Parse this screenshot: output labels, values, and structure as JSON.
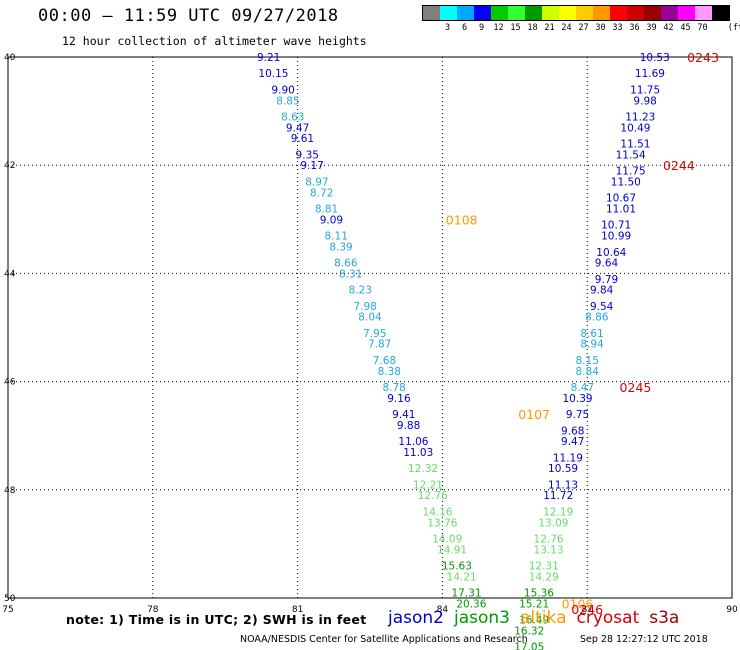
{
  "header": {
    "time_range": "00:00 – 11:59 UTC 09/27/2018",
    "subtitle": "12 hour collection of altimeter wave heights"
  },
  "legend": {
    "unit": "(ft)",
    "colors": [
      "#808080",
      "#00ffff",
      "#00aaff",
      "#0000ff",
      "#00cc00",
      "#33ff33",
      "#009900",
      "#ccff00",
      "#ffff00",
      "#ffcc00",
      "#ff9900",
      "#ff0000",
      "#cc0000",
      "#990000",
      "#990099",
      "#ff00ff",
      "#ff99ff",
      "#000000"
    ],
    "ticks": [
      "3",
      "6",
      "9",
      "12",
      "15",
      "18",
      "21",
      "24",
      "27",
      "30",
      "33",
      "36",
      "39",
      "42",
      "45",
      "70"
    ]
  },
  "axes": {
    "lon_labels": [
      "75",
      "78",
      "81",
      "84",
      "87",
      "90"
    ],
    "lat_labels": [
      "40",
      "42",
      "44",
      "46",
      "48",
      "50"
    ]
  },
  "tracks": [
    {
      "satellite": "jason3",
      "observations": [
        {
          "lon": 80.4,
          "lat": -40.0,
          "swh": "9.21",
          "color": "#0000cc"
        },
        {
          "lon": 80.5,
          "lat": -40.3,
          "swh": "10.15",
          "color": "#0000cc"
        },
        {
          "lon": 80.7,
          "lat": -40.6,
          "swh": "9.90",
          "color": "#0000cc"
        },
        {
          "lon": 80.8,
          "lat": -40.8,
          "swh": "8.85",
          "color": "#22aadd"
        },
        {
          "lon": 80.9,
          "lat": -41.1,
          "swh": "8.63",
          "color": "#22aadd"
        },
        {
          "lon": 81.0,
          "lat": -41.3,
          "swh": "9.47",
          "color": "#0000cc"
        },
        {
          "lon": 81.1,
          "lat": -41.5,
          "swh": "9.61",
          "color": "#0000cc"
        },
        {
          "lon": 81.2,
          "lat": -41.8,
          "swh": "9.35",
          "color": "#0000cc"
        },
        {
          "lon": 81.3,
          "lat": -42.0,
          "swh": "9.17",
          "color": "#0000cc"
        },
        {
          "lon": 81.4,
          "lat": -42.3,
          "swh": "8.97",
          "color": "#22aadd"
        },
        {
          "lon": 81.5,
          "lat": -42.5,
          "swh": "8.72",
          "color": "#22aadd"
        },
        {
          "lon": 81.6,
          "lat": -42.8,
          "swh": "8.81",
          "color": "#22aadd"
        },
        {
          "lon": 81.7,
          "lat": -43.0,
          "swh": "9.09",
          "color": "#0000cc"
        },
        {
          "lon": 81.8,
          "lat": -43.3,
          "swh": "8.11",
          "color": "#22aadd"
        },
        {
          "lon": 81.9,
          "lat": -43.5,
          "swh": "8.39",
          "color": "#22aadd"
        },
        {
          "lon": 82.0,
          "lat": -43.8,
          "swh": "8.66",
          "color": "#22aadd"
        },
        {
          "lon": 82.1,
          "lat": -44.0,
          "swh": "8.31",
          "color": "#22aadd"
        },
        {
          "lon": 82.3,
          "lat": -44.3,
          "swh": "8.23",
          "color": "#22aadd"
        },
        {
          "lon": 82.4,
          "lat": -44.6,
          "swh": "7.98",
          "color": "#22aadd"
        },
        {
          "lon": 82.5,
          "lat": -44.8,
          "swh": "8.04",
          "color": "#22aadd"
        },
        {
          "lon": 82.6,
          "lat": -45.1,
          "swh": "7.95",
          "color": "#22aadd"
        },
        {
          "lon": 82.7,
          "lat": -45.3,
          "swh": "7.87",
          "color": "#22aadd"
        },
        {
          "lon": 82.8,
          "lat": -45.6,
          "swh": "7.68",
          "color": "#22aadd"
        },
        {
          "lon": 82.9,
          "lat": -45.8,
          "swh": "8.38",
          "color": "#22aadd"
        },
        {
          "lon": 83.0,
          "lat": -46.1,
          "swh": "8.78",
          "color": "#22aadd"
        },
        {
          "lon": 83.1,
          "lat": -46.3,
          "swh": "9.16",
          "color": "#0000cc"
        },
        {
          "lon": 83.2,
          "lat": -46.6,
          "swh": "9.41",
          "color": "#0000cc"
        },
        {
          "lon": 83.3,
          "lat": -46.8,
          "swh": "9.88",
          "color": "#0000cc"
        },
        {
          "lon": 83.4,
          "lat": -47.1,
          "swh": "11.06",
          "color": "#0000cc"
        },
        {
          "lon": 83.5,
          "lat": -47.3,
          "swh": "11.03",
          "color": "#0000cc"
        },
        {
          "lon": 83.6,
          "lat": -47.6,
          "swh": "12.32",
          "color": "#66dd66"
        },
        {
          "lon": 83.7,
          "lat": -47.9,
          "swh": "12.21",
          "color": "#66dd66"
        },
        {
          "lon": 83.8,
          "lat": -48.1,
          "swh": "12.76",
          "color": "#66dd66"
        },
        {
          "lon": 83.9,
          "lat": -48.4,
          "swh": "14.16",
          "color": "#66dd66"
        },
        {
          "lon": 84.0,
          "lat": -48.6,
          "swh": "13.76",
          "color": "#66dd66"
        },
        {
          "lon": 84.1,
          "lat": -48.9,
          "swh": "14.09",
          "color": "#66dd66"
        },
        {
          "lon": 84.2,
          "lat": -49.1,
          "swh": "14.91",
          "color": "#66dd66"
        },
        {
          "lon": 84.3,
          "lat": -49.4,
          "swh": "15.63",
          "color": "#009900"
        },
        {
          "lon": 84.4,
          "lat": -49.6,
          "swh": "14.21",
          "color": "#66dd66"
        },
        {
          "lon": 84.5,
          "lat": -49.9,
          "swh": "17.31",
          "color": "#009900"
        },
        {
          "lon": 84.6,
          "lat": -50.1,
          "swh": "20.36",
          "color": "#009900"
        }
      ],
      "passes": [
        {
          "id": "0108",
          "lon": 84.4,
          "lat": -43.0,
          "color": "#ff9900"
        },
        {
          "id": "0107",
          "lon": 85.9,
          "lat": -46.6,
          "color": "#ff9900"
        },
        {
          "id": "0106",
          "lon": 86.8,
          "lat": -50.1,
          "color": "#ff9900"
        }
      ]
    },
    {
      "satellite": "cryosat",
      "observations": [
        {
          "lon": 88.4,
          "lat": -40.0,
          "swh": "10.53",
          "color": "#0000cc"
        },
        {
          "lon": 88.3,
          "lat": -40.3,
          "swh": "11.69",
          "color": "#0000cc"
        },
        {
          "lon": 88.2,
          "lat": -40.6,
          "swh": "11.75",
          "color": "#0000cc"
        },
        {
          "lon": 88.2,
          "lat": -40.8,
          "swh": "9.98",
          "color": "#0000cc"
        },
        {
          "lon": 88.1,
          "lat": -41.1,
          "swh": "11.23",
          "color": "#0000cc"
        },
        {
          "lon": 88.0,
          "lat": -41.3,
          "swh": "10.49",
          "color": "#0000cc"
        },
        {
          "lon": 88.0,
          "lat": -41.6,
          "swh": "11.51",
          "color": "#0000cc"
        },
        {
          "lon": 87.9,
          "lat": -41.8,
          "swh": "11.54",
          "color": "#0000cc"
        },
        {
          "lon": 87.9,
          "lat": -42.1,
          "swh": "11.75",
          "color": "#0000cc"
        },
        {
          "lon": 87.8,
          "lat": -42.3,
          "swh": "11.50",
          "color": "#0000cc"
        },
        {
          "lon": 87.7,
          "lat": -42.6,
          "swh": "10.67",
          "color": "#0000cc"
        },
        {
          "lon": 87.7,
          "lat": -42.8,
          "swh": "11.01",
          "color": "#0000cc"
        },
        {
          "lon": 87.6,
          "lat": -43.1,
          "swh": "10.71",
          "color": "#0000cc"
        },
        {
          "lon": 87.6,
          "lat": -43.3,
          "swh": "10.99",
          "color": "#0000cc"
        },
        {
          "lon": 87.5,
          "lat": -43.6,
          "swh": "10.64",
          "color": "#0000cc"
        },
        {
          "lon": 87.4,
          "lat": -43.8,
          "swh": "9.64",
          "color": "#0000cc"
        },
        {
          "lon": 87.4,
          "lat": -44.1,
          "swh": "9.79",
          "color": "#0000cc"
        },
        {
          "lon": 87.3,
          "lat": -44.3,
          "swh": "9.84",
          "color": "#0000cc"
        },
        {
          "lon": 87.3,
          "lat": -44.6,
          "swh": "9.54",
          "color": "#0000cc"
        },
        {
          "lon": 87.2,
          "lat": -44.8,
          "swh": "8.86",
          "color": "#22aadd"
        },
        {
          "lon": 87.1,
          "lat": -45.1,
          "swh": "8.61",
          "color": "#22aadd"
        },
        {
          "lon": 87.1,
          "lat": -45.3,
          "swh": "8.94",
          "color": "#22aadd"
        },
        {
          "lon": 87.0,
          "lat": -45.6,
          "swh": "8.15",
          "color": "#22aadd"
        },
        {
          "lon": 87.0,
          "lat": -45.8,
          "swh": "8.84",
          "color": "#22aadd"
        },
        {
          "lon": 86.9,
          "lat": -46.1,
          "swh": "8.47",
          "color": "#22aadd"
        },
        {
          "lon": 86.8,
          "lat": -46.3,
          "swh": "10.39",
          "color": "#0000cc"
        },
        {
          "lon": 86.8,
          "lat": -46.6,
          "swh": "9.75",
          "color": "#0000cc"
        },
        {
          "lon": 86.7,
          "lat": -46.9,
          "swh": "9.68",
          "color": "#0000cc"
        },
        {
          "lon": 86.7,
          "lat": -47.1,
          "swh": "9.47",
          "color": "#0000cc"
        },
        {
          "lon": 86.6,
          "lat": -47.4,
          "swh": "11.19",
          "color": "#0000cc"
        },
        {
          "lon": 86.5,
          "lat": -47.6,
          "swh": "10.59",
          "color": "#0000cc"
        },
        {
          "lon": 86.5,
          "lat": -47.9,
          "swh": "11.13",
          "color": "#0000cc"
        },
        {
          "lon": 86.4,
          "lat": -48.1,
          "swh": "11.72",
          "color": "#0000cc"
        },
        {
          "lon": 86.4,
          "lat": -48.4,
          "swh": "12.19",
          "color": "#66dd66"
        },
        {
          "lon": 86.3,
          "lat": -48.6,
          "swh": "13.09",
          "color": "#66dd66"
        },
        {
          "lon": 86.2,
          "lat": -48.9,
          "swh": "12.76",
          "color": "#66dd66"
        },
        {
          "lon": 86.2,
          "lat": -49.1,
          "swh": "13.13",
          "color": "#66dd66"
        },
        {
          "lon": 86.1,
          "lat": -49.4,
          "swh": "12.31",
          "color": "#66dd66"
        },
        {
          "lon": 86.1,
          "lat": -49.6,
          "swh": "14.29",
          "color": "#66dd66"
        },
        {
          "lon": 86.0,
          "lat": -49.9,
          "swh": "15.36",
          "color": "#009900"
        },
        {
          "lon": 85.9,
          "lat": -50.1,
          "swh": "15.21",
          "color": "#009900"
        },
        {
          "lon": 85.9,
          "lat": -50.4,
          "swh": "16.49",
          "color": "#009900"
        },
        {
          "lon": 85.8,
          "lat": -50.6,
          "swh": "16.32",
          "color": "#009900"
        },
        {
          "lon": 85.8,
          "lat": -50.9,
          "swh": "17.05",
          "color": "#009900"
        }
      ],
      "passes": [
        {
          "id": "0243",
          "lon": 89.4,
          "lat": -40.0,
          "color": "#dd0000"
        },
        {
          "id": "0244",
          "lon": 88.9,
          "lat": -42.0,
          "color": "#dd0000"
        },
        {
          "lon": 88.0,
          "lat": -46.1,
          "id": "0245",
          "color": "#dd0000"
        },
        {
          "id": "0246",
          "lon": 87.0,
          "lat": -50.2,
          "color": "#dd0000"
        }
      ]
    }
  ],
  "footer": {
    "note": "note: 1) Time is in UTC; 2) SWH is in feet",
    "satellites": [
      {
        "name": "jason2",
        "color": "#0000cc"
      },
      {
        "name": "jason3",
        "color": "#009900"
      },
      {
        "name": "altika",
        "color": "#ff9900"
      },
      {
        "name": "cryosat",
        "color": "#dd0000"
      },
      {
        "name": "s3a",
        "color": "#990000"
      }
    ],
    "credit": "NOAA/NESDIS Center for Satellite Applications and Research",
    "timestamp": "Sep 28 12:27:12 UTC 2018"
  }
}
